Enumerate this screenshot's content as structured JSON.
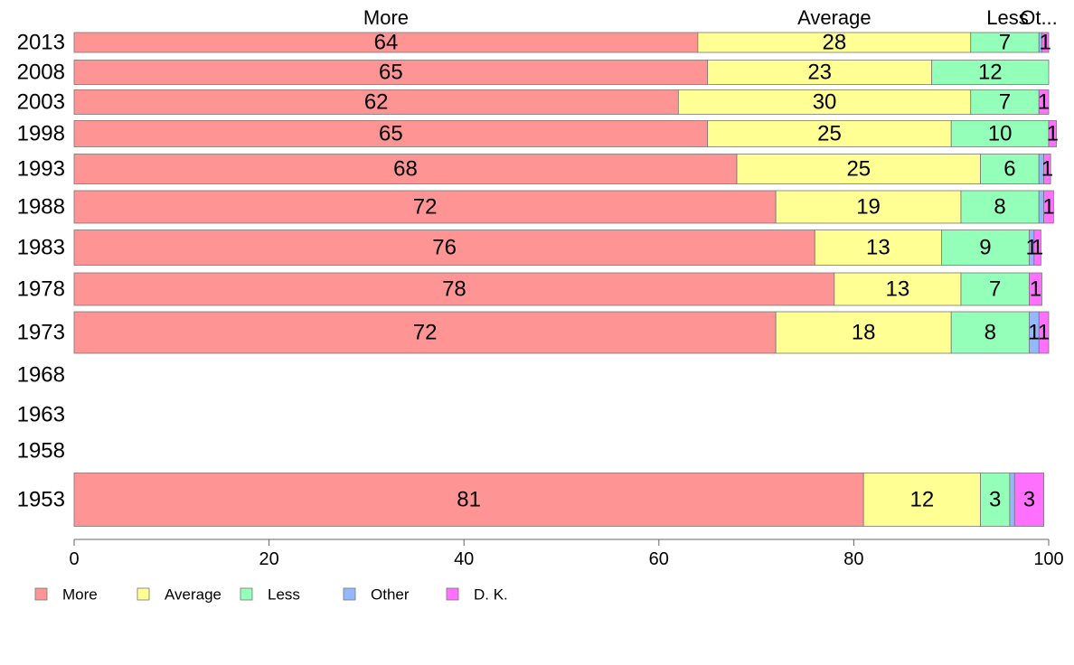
{
  "chart_data": {
    "type": "bar",
    "orientation": "horizontal",
    "stacked": true,
    "xlim": [
      0,
      100
    ],
    "xticks": [
      0,
      20,
      40,
      60,
      80,
      100
    ],
    "grid": false,
    "legend_position": "bottom-left",
    "column_headers": [
      "More",
      "Average",
      "Less",
      "Ot..."
    ],
    "categories": [
      "2013",
      "2008",
      "2003",
      "1998",
      "1993",
      "1988",
      "1983",
      "1978",
      "1973",
      "1968",
      "1963",
      "1958",
      "1953"
    ],
    "series": [
      {
        "name": "More",
        "color": "#ff9494",
        "values": [
          64,
          65,
          62,
          65,
          68,
          72,
          76,
          78,
          72,
          null,
          null,
          null,
          81
        ]
      },
      {
        "name": "Average",
        "color": "#ffff94",
        "values": [
          28,
          23,
          30,
          25,
          25,
          19,
          13,
          13,
          18,
          null,
          null,
          null,
          12
        ]
      },
      {
        "name": "Less",
        "color": "#94ffb8",
        "values": [
          7,
          12,
          7,
          10,
          6,
          8,
          9,
          7,
          8,
          null,
          null,
          null,
          3
        ]
      },
      {
        "name": "Other",
        "color": "#94b8ff",
        "values": [
          0.3,
          0,
          0,
          0,
          0.5,
          0.5,
          0.5,
          0,
          1,
          null,
          null,
          null,
          0.5
        ]
      },
      {
        "name": "D. K.",
        "color": "#ff70ff",
        "values": [
          0.7,
          0,
          1,
          0.8,
          0.7,
          1,
          0.7,
          1.3,
          1,
          null,
          null,
          null,
          3
        ]
      }
    ],
    "labels": [
      [
        "64",
        "28",
        "7",
        "",
        "1"
      ],
      [
        "65",
        "23",
        "12",
        "",
        ""
      ],
      [
        "62",
        "30",
        "7",
        "",
        "1"
      ],
      [
        "65",
        "25",
        "10",
        "",
        "1"
      ],
      [
        "68",
        "25",
        "6",
        "",
        "1"
      ],
      [
        "72",
        "19",
        "8",
        "",
        "1"
      ],
      [
        "76",
        "13",
        "9",
        "1",
        "1"
      ],
      [
        "78",
        "13",
        "7",
        "",
        "1"
      ],
      [
        "72",
        "18",
        "8",
        "1",
        "1"
      ],
      [],
      [],
      [],
      [
        "81",
        "12",
        "3",
        "",
        "3"
      ]
    ]
  }
}
